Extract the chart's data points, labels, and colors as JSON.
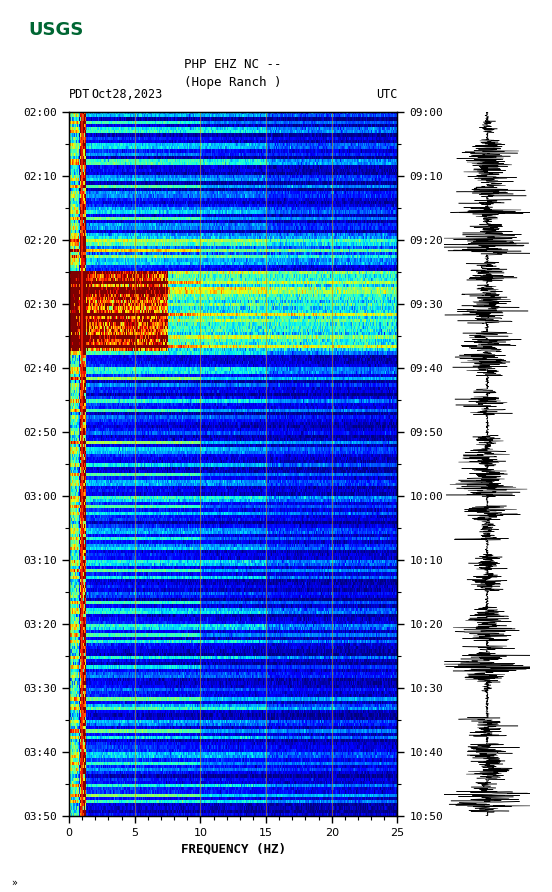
{
  "title_line1": "PHP EHZ NC --",
  "title_line2": "(Hope Ranch )",
  "left_label": "PDT",
  "date_label": "Oct28,2023",
  "right_label": "UTC",
  "xlabel": "FREQUENCY (HZ)",
  "freq_min": 0,
  "freq_max": 25,
  "left_yticks": [
    "02:00",
    "02:10",
    "02:20",
    "02:30",
    "02:40",
    "02:50",
    "03:00",
    "03:10",
    "03:20",
    "03:30",
    "03:40",
    "03:50"
  ],
  "right_yticks": [
    "09:00",
    "09:10",
    "09:20",
    "09:30",
    "09:40",
    "09:50",
    "10:00",
    "10:10",
    "10:20",
    "10:30",
    "10:40",
    "10:50"
  ],
  "freq_ticks": [
    0,
    5,
    10,
    15,
    20,
    25
  ],
  "colormap": "jet",
  "background_color": "#ffffff",
  "usgs_color": "#006633",
  "fig_width": 5.52,
  "fig_height": 8.92,
  "grid_line_color": "#cc8800",
  "vert_line_color": "#ff4400"
}
